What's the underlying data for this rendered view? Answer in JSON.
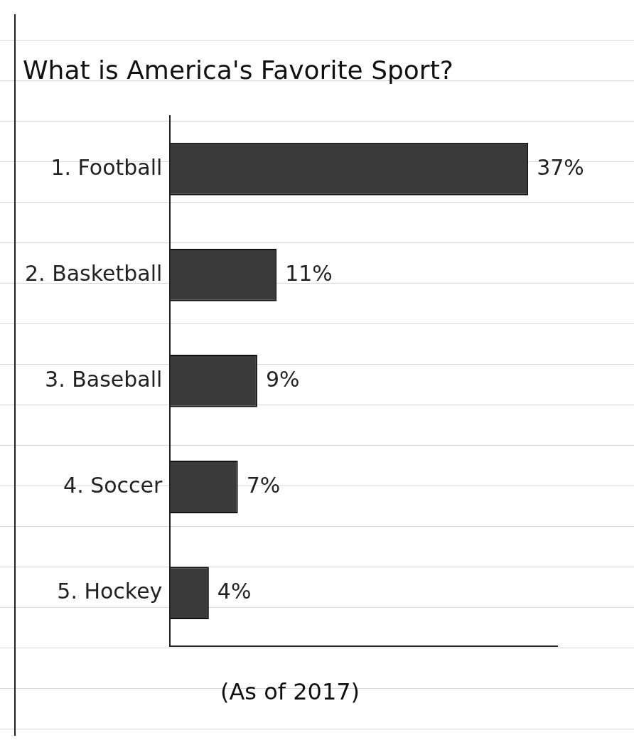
{
  "chart_data": {
    "type": "bar",
    "title": "What is America's Favorite Sport?",
    "subtitle": "(As of 2017)",
    "categories": [
      "1. Football",
      "2. Basketball",
      "3. Baseball",
      "4. Soccer",
      "5. Hockey"
    ],
    "values": [
      37,
      11,
      9,
      7,
      4
    ],
    "value_labels": [
      "37%",
      "11%",
      "9%",
      "7%",
      "4%"
    ],
    "data_labels": true,
    "orientation": "horizontal",
    "color": "#3a3a3a",
    "xlim": [
      0,
      40
    ],
    "grid": false,
    "tick_labels": "y"
  }
}
